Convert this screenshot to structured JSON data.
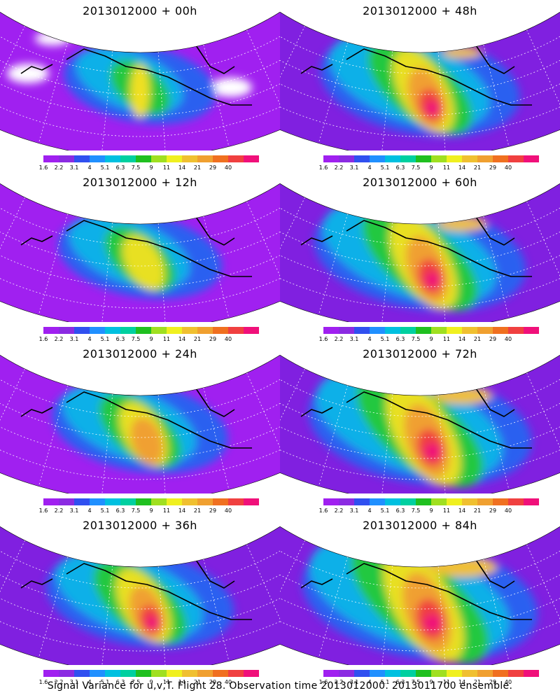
{
  "panels": [
    {
      "title": "2013012000 + 00h",
      "hour": 0
    },
    {
      "title": "2013012000 + 48h",
      "hour": 48
    },
    {
      "title": "2013012000 + 12h",
      "hour": 12
    },
    {
      "title": "2013012000 + 60h",
      "hour": 60
    },
    {
      "title": "2013012000 + 24h",
      "hour": 24
    },
    {
      "title": "2013012000 + 72h",
      "hour": 72
    },
    {
      "title": "2013012000 + 36h",
      "hour": 36
    },
    {
      "title": "2013012000 + 84h",
      "hour": 84
    }
  ],
  "colorbar": {
    "labels": [
      "1.6",
      "2.2",
      "3.1",
      "4",
      "5.1",
      "6.3",
      "7.5",
      "9",
      "11",
      "14",
      "21",
      "29",
      "40"
    ],
    "colors": [
      "#a020f0",
      "#8b2be2",
      "#3050f0",
      "#2090ff",
      "#00c0e0",
      "#00d0a0",
      "#20c020",
      "#a0e020",
      "#f0f020",
      "#f0c030",
      "#f0a030",
      "#f07020",
      "#f04040",
      "#f0107a"
    ]
  },
  "footer": "Signal Variance for u,v,T. Flight 28. Observation time 2013012000. 2013011700 ensemble."
}
